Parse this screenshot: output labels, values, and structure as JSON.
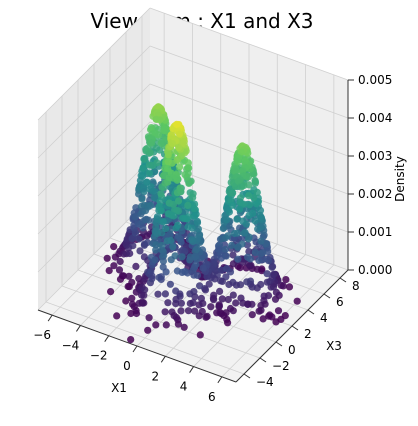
{
  "chart_data": {
    "type": "scatter",
    "projection": "3d",
    "title": "View from : X1 and X3",
    "xlabel": "X1",
    "ylabel": "X3",
    "zlabel": "Density",
    "xlim": [
      -7,
      7
    ],
    "ylim": [
      -5,
      9
    ],
    "zlim": [
      0,
      0.005
    ],
    "x_ticks": [
      "−6",
      "−4",
      "−2",
      "0",
      "2",
      "4",
      "6"
    ],
    "y_ticks": [
      "−4",
      "−2",
      "0",
      "2",
      "4",
      "6",
      "8"
    ],
    "z_ticks": [
      "0.000",
      "0.001",
      "0.002",
      "0.003",
      "0.004",
      "0.005"
    ],
    "grid": true,
    "colormap": "viridis",
    "colormap_colors": [
      "#440154",
      "#3b528b",
      "#21918c",
      "#5ec962",
      "#fde725"
    ],
    "mixture_components": [
      {
        "x1_mean": -3,
        "x3_mean": 3,
        "std": 1.0,
        "peak_density": 0.0042
      },
      {
        "x1_mean": 0,
        "x3_mean": 0,
        "std": 1.0,
        "peak_density": 0.0048
      },
      {
        "x1_mean": 3,
        "x3_mean": 3,
        "std": 1.0,
        "peak_density": 0.004
      }
    ]
  }
}
